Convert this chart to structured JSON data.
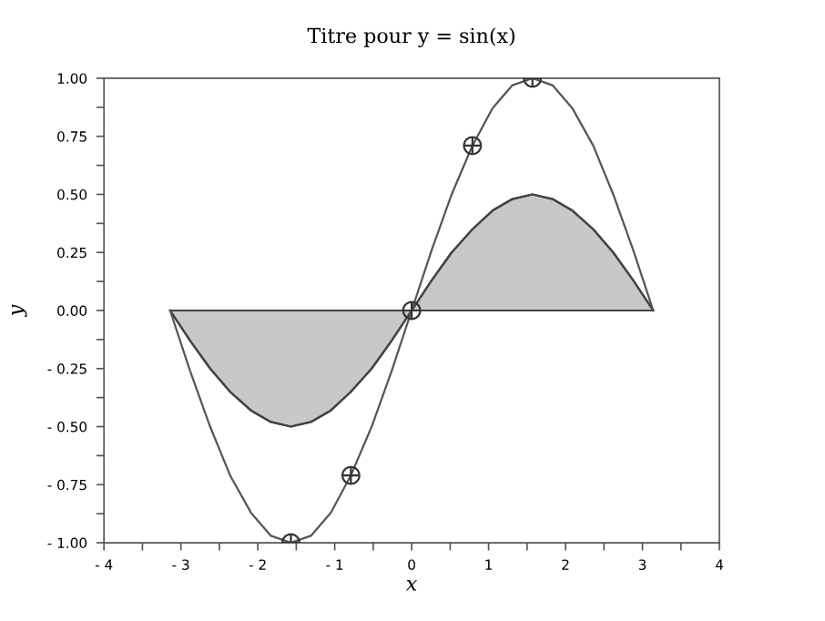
{
  "chart_data": {
    "type": "line",
    "title": "Titre pour y = sin(x)",
    "xlabel": "x",
    "ylabel": "y",
    "series": [
      {
        "type": "area",
        "color": "#c8c8c8",
        "x": [
          -3.14,
          -2.88,
          -2.62,
          -2.36,
          -2.09,
          -1.83,
          -1.57,
          -1.31,
          -1.05,
          -0.79,
          -0.52,
          -0.26,
          0,
          0.26,
          0.52,
          0.79,
          1.05,
          1.31,
          1.57,
          1.83,
          2.09,
          2.36,
          2.62,
          2.88,
          3.14
        ],
        "values": [
          0,
          -0.13,
          -0.25,
          -0.35,
          -0.43,
          -0.48,
          -0.5,
          -0.48,
          -0.43,
          -0.35,
          -0.25,
          -0.13,
          0,
          0.13,
          0.25,
          0.35,
          0.43,
          0.48,
          0.5,
          0.48,
          0.43,
          0.35,
          0.25,
          0.13,
          0
        ]
      },
      {
        "color": "#555555",
        "x": [
          -3.14,
          -2.88,
          -2.62,
          -2.36,
          -2.09,
          -1.83,
          -1.57,
          -1.31,
          -1.05,
          -0.79,
          -0.52,
          -0.26,
          0,
          0.26,
          0.52,
          0.79,
          1.05,
          1.31,
          1.57,
          1.83,
          2.09,
          2.36,
          2.62,
          2.88,
          3.14
        ],
        "values": [
          0,
          -0.26,
          -0.5,
          -0.71,
          -0.87,
          -0.97,
          -1,
          -0.97,
          -0.87,
          -0.71,
          -0.5,
          -0.26,
          0,
          0.26,
          0.5,
          0.71,
          0.87,
          0.97,
          1,
          0.97,
          0.87,
          0.71,
          0.5,
          0.26,
          0
        ]
      },
      {
        "type": "scatter",
        "color": "#333333",
        "marker": "cross",
        "x": [
          -1.57,
          -0.79,
          0,
          0.79,
          1.57
        ],
        "values": [
          -1,
          -0.71,
          0,
          0.71,
          1
        ]
      }
    ],
    "xlim": [
      -4,
      4
    ],
    "ylim": [
      -1,
      1
    ],
    "xticks": [
      {
        "value": -4,
        "label": "- 4"
      },
      {
        "value": -3.5,
        "label": null
      },
      {
        "value": -3,
        "label": "- 3"
      },
      {
        "value": -2.5,
        "label": null
      },
      {
        "value": -2,
        "label": "- 2"
      },
      {
        "value": -1.5,
        "label": null
      },
      {
        "value": -1,
        "label": "- 1"
      },
      {
        "value": -0.5,
        "label": null
      },
      0,
      {
        "value": 0.5,
        "label": null
      },
      1,
      {
        "value": 1.5,
        "label": null
      },
      2,
      {
        "value": 2.5,
        "label": null
      },
      3,
      {
        "value": 3.5,
        "label": null
      },
      4
    ],
    "yticks": [
      {
        "value": -1,
        "label": "- 1.00"
      },
      {
        "value": -0.875,
        "label": null
      },
      {
        "value": -0.75,
        "label": "- 0.75"
      },
      {
        "value": -0.625,
        "label": null
      },
      {
        "value": -0.5,
        "label": "- 0.50"
      },
      {
        "value": -0.375,
        "label": null
      },
      {
        "value": -0.25,
        "label": "- 0.25"
      },
      {
        "value": -0.125,
        "label": null
      },
      {
        "value": 0,
        "label": "0.00"
      },
      {
        "value": 0.125,
        "label": null
      },
      {
        "value": 0.25,
        "label": "0.25"
      },
      {
        "value": 0.375,
        "label": null
      },
      {
        "value": 0.5,
        "label": "0.50"
      },
      {
        "value": 0.625,
        "label": null
      },
      {
        "value": 0.75,
        "label": "0.75"
      },
      {
        "value": 0.875,
        "label": null
      },
      {
        "value": 1,
        "label": "1.00"
      }
    ],
    "grid": false
  }
}
